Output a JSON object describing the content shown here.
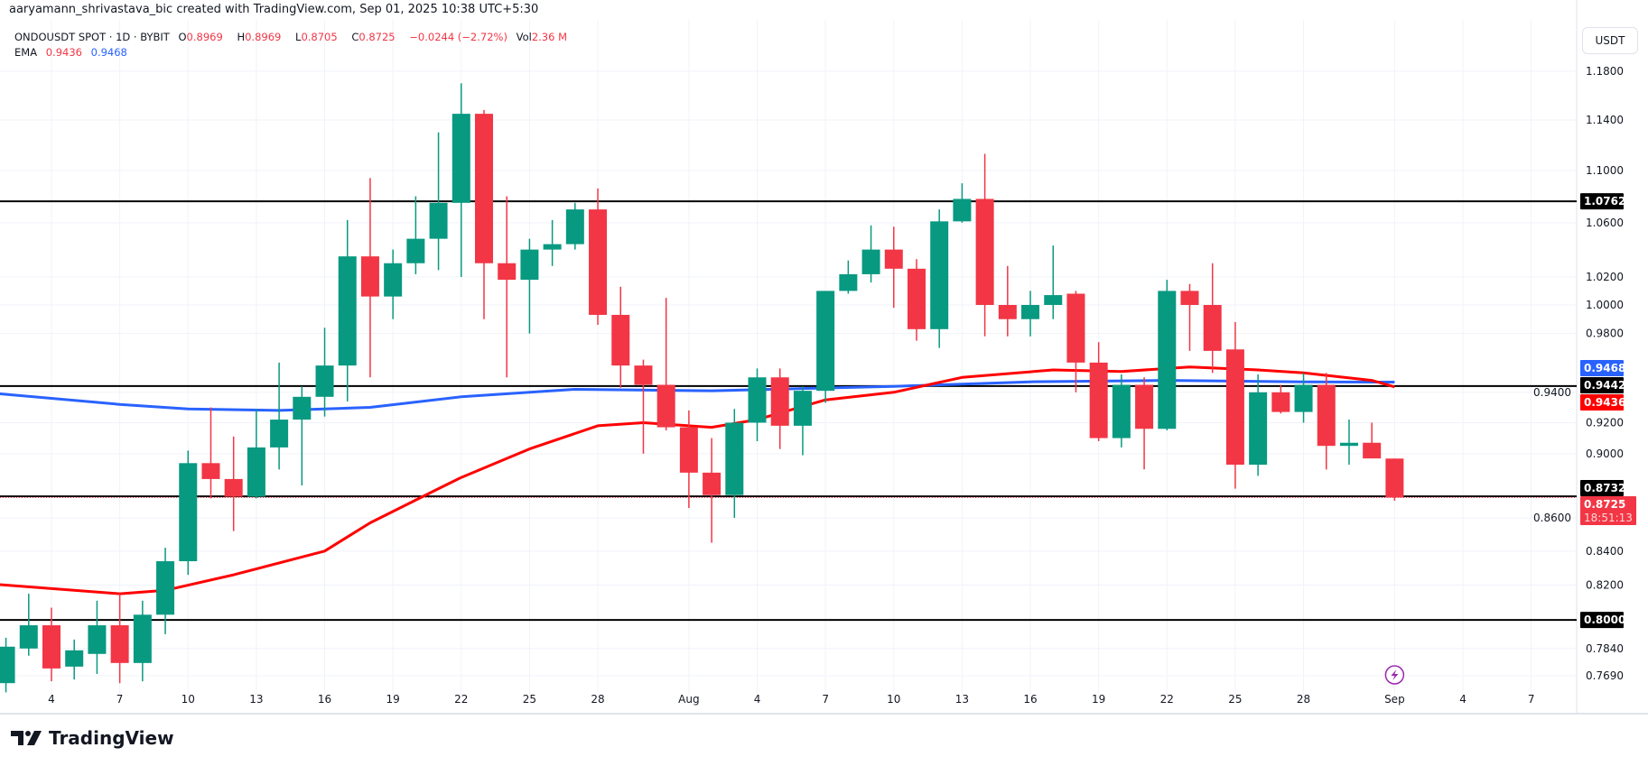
{
  "attribution": "aaryamann_shrivastava_bic created with TradingView.com, Sep 01, 2025 10:38 UTC+5:30",
  "legend": {
    "symbol": "ONDOUSDT SPOT · 1D · BYBIT",
    "open_label": "O",
    "open": "0.8969",
    "high_label": "H",
    "high": "0.8969",
    "low_label": "L",
    "low": "0.8705",
    "close_label": "C",
    "close": "0.8725",
    "change": "−0.0244 (−2.72%)",
    "vol_label": "Vol",
    "vol": "2.36 M",
    "ema_label": "EMA",
    "ema_fast": "0.9436",
    "ema_slow": "0.9468"
  },
  "unit_button": "USDT",
  "logo_text": "TradingView",
  "colors": {
    "up": "#089981",
    "down": "#f23645",
    "ema_fast": "#ff0000",
    "ema_slow": "#2962ff",
    "level": "#000000"
  },
  "chart_data": {
    "type": "candlestick",
    "y_scale": "log",
    "ylim": [
      0.769,
      1.18
    ],
    "grid": true,
    "y_ticks": [
      "1.1800",
      "1.1400",
      "1.1000",
      "1.0600",
      "1.0200",
      "1.0000",
      "0.9800",
      "0.9400",
      "0.9200",
      "0.9000",
      "0.8600",
      "0.8400",
      "0.8200",
      "0.7840",
      "0.7690"
    ],
    "x_ticks": [
      {
        "label": "4",
        "date": "2025-07-04"
      },
      {
        "label": "7",
        "date": "2025-07-07"
      },
      {
        "label": "10",
        "date": "2025-07-10"
      },
      {
        "label": "13",
        "date": "2025-07-13"
      },
      {
        "label": "16",
        "date": "2025-07-16"
      },
      {
        "label": "19",
        "date": "2025-07-19"
      },
      {
        "label": "22",
        "date": "2025-07-22"
      },
      {
        "label": "25",
        "date": "2025-07-25"
      },
      {
        "label": "28",
        "date": "2025-07-28"
      },
      {
        "label": "Aug",
        "date": "2025-08-01"
      },
      {
        "label": "4",
        "date": "2025-08-04"
      },
      {
        "label": "7",
        "date": "2025-08-07"
      },
      {
        "label": "10",
        "date": "2025-08-10"
      },
      {
        "label": "13",
        "date": "2025-08-13"
      },
      {
        "label": "16",
        "date": "2025-08-16"
      },
      {
        "label": "19",
        "date": "2025-08-19"
      },
      {
        "label": "22",
        "date": "2025-08-22"
      },
      {
        "label": "25",
        "date": "2025-08-25"
      },
      {
        "label": "28",
        "date": "2025-08-28"
      },
      {
        "label": "Sep",
        "date": "2025-09-01"
      },
      {
        "label": "4",
        "date": "2025-09-04"
      },
      {
        "label": "7",
        "date": "2025-09-07"
      }
    ],
    "candles": [
      {
        "date": "2025-07-02",
        "o": 0.765,
        "h": 0.79,
        "l": 0.76,
        "c": 0.785
      },
      {
        "date": "2025-07-03",
        "o": 0.784,
        "h": 0.815,
        "l": 0.78,
        "c": 0.797
      },
      {
        "date": "2025-07-04",
        "o": 0.797,
        "h": 0.807,
        "l": 0.766,
        "c": 0.773
      },
      {
        "date": "2025-07-05",
        "o": 0.774,
        "h": 0.789,
        "l": 0.767,
        "c": 0.783
      },
      {
        "date": "2025-07-06",
        "o": 0.781,
        "h": 0.811,
        "l": 0.77,
        "c": 0.797
      },
      {
        "date": "2025-07-07",
        "o": 0.797,
        "h": 0.815,
        "l": 0.765,
        "c": 0.776
      },
      {
        "date": "2025-07-08",
        "o": 0.776,
        "h": 0.811,
        "l": 0.766,
        "c": 0.803
      },
      {
        "date": "2025-07-09",
        "o": 0.803,
        "h": 0.842,
        "l": 0.792,
        "c": 0.834
      },
      {
        "date": "2025-07-10",
        "o": 0.834,
        "h": 0.902,
        "l": 0.826,
        "c": 0.894
      },
      {
        "date": "2025-07-11",
        "o": 0.894,
        "h": 0.93,
        "l": 0.872,
        "c": 0.884
      },
      {
        "date": "2025-07-12",
        "o": 0.884,
        "h": 0.911,
        "l": 0.852,
        "c": 0.873
      },
      {
        "date": "2025-07-13",
        "o": 0.873,
        "h": 0.929,
        "l": 0.872,
        "c": 0.904
      },
      {
        "date": "2025-07-14",
        "o": 0.904,
        "h": 0.96,
        "l": 0.89,
        "c": 0.922
      },
      {
        "date": "2025-07-15",
        "o": 0.922,
        "h": 0.944,
        "l": 0.88,
        "c": 0.937
      },
      {
        "date": "2025-07-16",
        "o": 0.937,
        "h": 0.984,
        "l": 0.924,
        "c": 0.958
      },
      {
        "date": "2025-07-17",
        "o": 0.958,
        "h": 1.062,
        "l": 0.934,
        "c": 1.035
      },
      {
        "date": "2025-07-18",
        "o": 1.035,
        "h": 1.094,
        "l": 0.95,
        "c": 1.006
      },
      {
        "date": "2025-07-19",
        "o": 1.006,
        "h": 1.04,
        "l": 0.99,
        "c": 1.03
      },
      {
        "date": "2025-07-20",
        "o": 1.03,
        "h": 1.08,
        "l": 1.022,
        "c": 1.048
      },
      {
        "date": "2025-07-21",
        "o": 1.048,
        "h": 1.13,
        "l": 1.025,
        "c": 1.075
      },
      {
        "date": "2025-07-22",
        "o": 1.075,
        "h": 1.17,
        "l": 1.02,
        "c": 1.145
      },
      {
        "date": "2025-07-23",
        "o": 1.145,
        "h": 1.148,
        "l": 0.99,
        "c": 1.03
      },
      {
        "date": "2025-07-24",
        "o": 1.03,
        "h": 1.08,
        "l": 0.95,
        "c": 1.018
      },
      {
        "date": "2025-07-25",
        "o": 1.018,
        "h": 1.048,
        "l": 0.98,
        "c": 1.04
      },
      {
        "date": "2025-07-26",
        "o": 1.04,
        "h": 1.062,
        "l": 1.028,
        "c": 1.044
      },
      {
        "date": "2025-07-27",
        "o": 1.044,
        "h": 1.075,
        "l": 1.04,
        "c": 1.07
      },
      {
        "date": "2025-07-28",
        "o": 1.07,
        "h": 1.086,
        "l": 0.986,
        "c": 0.993
      },
      {
        "date": "2025-07-29",
        "o": 0.993,
        "h": 1.013,
        "l": 0.943,
        "c": 0.958
      },
      {
        "date": "2025-07-30",
        "o": 0.958,
        "h": 0.962,
        "l": 0.9,
        "c": 0.945
      },
      {
        "date": "2025-07-31",
        "o": 0.945,
        "h": 1.005,
        "l": 0.915,
        "c": 0.917
      },
      {
        "date": "2025-08-01",
        "o": 0.917,
        "h": 0.928,
        "l": 0.866,
        "c": 0.888
      },
      {
        "date": "2025-08-02",
        "o": 0.888,
        "h": 0.91,
        "l": 0.845,
        "c": 0.874
      },
      {
        "date": "2025-08-03",
        "o": 0.874,
        "h": 0.929,
        "l": 0.86,
        "c": 0.92
      },
      {
        "date": "2025-08-04",
        "o": 0.92,
        "h": 0.956,
        "l": 0.908,
        "c": 0.95
      },
      {
        "date": "2025-08-05",
        "o": 0.95,
        "h": 0.956,
        "l": 0.903,
        "c": 0.918
      },
      {
        "date": "2025-08-06",
        "o": 0.918,
        "h": 0.944,
        "l": 0.899,
        "c": 0.941
      },
      {
        "date": "2025-08-07",
        "o": 0.941,
        "h": 1.01,
        "l": 0.933,
        "c": 1.01
      },
      {
        "date": "2025-08-08",
        "o": 1.01,
        "h": 1.032,
        "l": 1.008,
        "c": 1.022
      },
      {
        "date": "2025-08-09",
        "o": 1.022,
        "h": 1.058,
        "l": 1.016,
        "c": 1.04
      },
      {
        "date": "2025-08-10",
        "o": 1.04,
        "h": 1.057,
        "l": 0.998,
        "c": 1.026
      },
      {
        "date": "2025-08-11",
        "o": 1.026,
        "h": 1.033,
        "l": 0.975,
        "c": 0.983
      },
      {
        "date": "2025-08-12",
        "o": 0.983,
        "h": 1.07,
        "l": 0.97,
        "c": 1.061
      },
      {
        "date": "2025-08-13",
        "o": 1.061,
        "h": 1.09,
        "l": 1.06,
        "c": 1.078
      },
      {
        "date": "2025-08-14",
        "o": 1.078,
        "h": 1.113,
        "l": 0.978,
        "c": 1.0
      },
      {
        "date": "2025-08-15",
        "o": 1.0,
        "h": 1.028,
        "l": 0.978,
        "c": 0.99
      },
      {
        "date": "2025-08-16",
        "o": 0.99,
        "h": 1.01,
        "l": 0.978,
        "c": 1.0
      },
      {
        "date": "2025-08-17",
        "o": 1.0,
        "h": 1.043,
        "l": 0.99,
        "c": 1.007
      },
      {
        "date": "2025-08-18",
        "o": 1.008,
        "h": 1.01,
        "l": 0.94,
        "c": 0.96
      },
      {
        "date": "2025-08-19",
        "o": 0.96,
        "h": 0.974,
        "l": 0.908,
        "c": 0.91
      },
      {
        "date": "2025-08-20",
        "o": 0.91,
        "h": 0.952,
        "l": 0.904,
        "c": 0.945
      },
      {
        "date": "2025-08-21",
        "o": 0.945,
        "h": 0.95,
        "l": 0.89,
        "c": 0.916
      },
      {
        "date": "2025-08-22",
        "o": 0.916,
        "h": 1.018,
        "l": 0.915,
        "c": 1.01
      },
      {
        "date": "2025-08-23",
        "o": 1.01,
        "h": 1.015,
        "l": 0.968,
        "c": 1.0
      },
      {
        "date": "2025-08-24",
        "o": 1.0,
        "h": 1.03,
        "l": 0.953,
        "c": 0.968
      },
      {
        "date": "2025-08-25",
        "o": 0.969,
        "h": 0.988,
        "l": 0.878,
        "c": 0.893
      },
      {
        "date": "2025-08-26",
        "o": 0.893,
        "h": 0.952,
        "l": 0.886,
        "c": 0.94
      },
      {
        "date": "2025-08-27",
        "o": 0.94,
        "h": 0.945,
        "l": 0.926,
        "c": 0.927
      },
      {
        "date": "2025-08-28",
        "o": 0.927,
        "h": 0.953,
        "l": 0.92,
        "c": 0.945
      },
      {
        "date": "2025-08-29",
        "o": 0.945,
        "h": 0.953,
        "l": 0.89,
        "c": 0.905
      },
      {
        "date": "2025-08-30",
        "o": 0.905,
        "h": 0.922,
        "l": 0.893,
        "c": 0.907
      },
      {
        "date": "2025-08-31",
        "o": 0.907,
        "h": 0.92,
        "l": 0.897,
        "c": 0.897
      },
      {
        "date": "2025-09-01",
        "o": 0.8969,
        "h": 0.8969,
        "l": 0.8705,
        "c": 0.8725
      }
    ],
    "ema_fast": [
      [
        "2025-07-01",
        0.821
      ],
      [
        "2025-07-07",
        0.815
      ],
      [
        "2025-07-09",
        0.817
      ],
      [
        "2025-07-12",
        0.826
      ],
      [
        "2025-07-16",
        0.84
      ],
      [
        "2025-07-18",
        0.857
      ],
      [
        "2025-07-21",
        0.878
      ],
      [
        "2025-07-22",
        0.885
      ],
      [
        "2025-07-25",
        0.903
      ],
      [
        "2025-07-28",
        0.918
      ],
      [
        "2025-07-30",
        0.92
      ],
      [
        "2025-08-02",
        0.917
      ],
      [
        "2025-08-04",
        0.922
      ],
      [
        "2025-08-07",
        0.935
      ],
      [
        "2025-08-10",
        0.94
      ],
      [
        "2025-08-13",
        0.95
      ],
      [
        "2025-08-17",
        0.955
      ],
      [
        "2025-08-20",
        0.954
      ],
      [
        "2025-08-23",
        0.957
      ],
      [
        "2025-08-26",
        0.955
      ],
      [
        "2025-08-28",
        0.953
      ],
      [
        "2025-08-31",
        0.948
      ],
      [
        "2025-09-01",
        0.9436
      ]
    ],
    "ema_slow": [
      [
        "2025-07-01",
        0.94
      ],
      [
        "2025-07-07",
        0.932
      ],
      [
        "2025-07-10",
        0.929
      ],
      [
        "2025-07-14",
        0.928
      ],
      [
        "2025-07-18",
        0.93
      ],
      [
        "2025-07-22",
        0.937
      ],
      [
        "2025-07-27",
        0.942
      ],
      [
        "2025-08-02",
        0.941
      ],
      [
        "2025-08-10",
        0.944
      ],
      [
        "2025-08-16",
        0.947
      ],
      [
        "2025-08-22",
        0.948
      ],
      [
        "2025-08-28",
        0.947
      ],
      [
        "2025-09-01",
        0.9468
      ]
    ],
    "levels": [
      {
        "value": 1.0762,
        "label": "1.0762"
      },
      {
        "value": 0.9442,
        "label": "0.9442"
      },
      {
        "value": 0.8732,
        "label": "0.8732"
      },
      {
        "value": 0.8,
        "label": "0.8000"
      }
    ],
    "price_labels": [
      {
        "value": 0.9468,
        "label": "0.9468",
        "color": "#2962ff"
      },
      {
        "value": 0.9442,
        "label": "0.9442",
        "color": "#000000"
      },
      {
        "value": 0.9436,
        "label": "0.9436",
        "color": "#ff0000"
      },
      {
        "value": 0.8732,
        "label": "0.8732",
        "color": "#000000"
      },
      {
        "value": 0.8725,
        "label": "0.8725",
        "color": "#f23645",
        "countdown": "18:51:13"
      },
      {
        "value": 1.0762,
        "label": "1.0762",
        "color": "#000000"
      },
      {
        "value": 0.8,
        "label": "0.8000",
        "color": "#000000"
      }
    ],
    "last_price": 0.8725,
    "event_marker": {
      "date": "2025-09-01",
      "icon": "lightning-icon",
      "color": "#9c27b0"
    }
  }
}
